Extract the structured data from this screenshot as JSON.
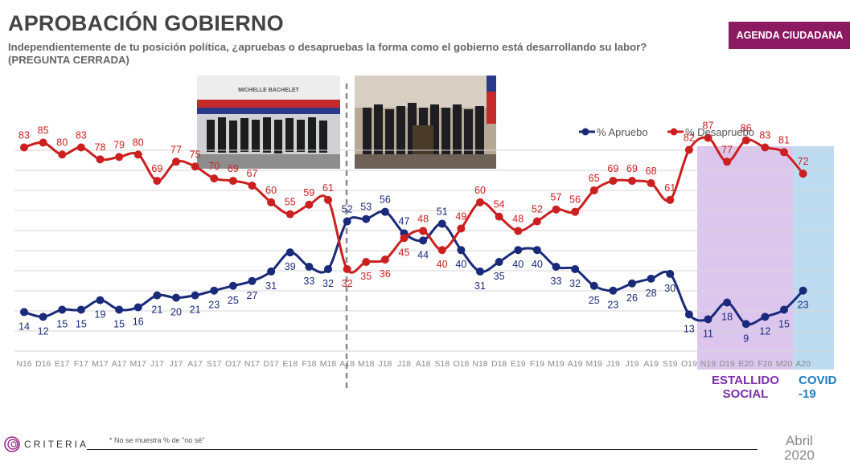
{
  "header": {
    "title": "APROBACIÓN GOBIERNO",
    "subtitle": "Independientemente de tu posición política, ¿apruebas o desapruebas la forma como el  gobierno está desarrollando su labor?",
    "subtitle2": "(PREGUNTA CERRADA)",
    "badge": "AGENDA CIUDADANA"
  },
  "photos": {
    "left_banner": "MICHELLE BACHELET"
  },
  "periods": {
    "estallido": "ESTALLIDO SOCIAL",
    "covid": "COVID -19"
  },
  "footer": {
    "brand": "CRITERIA",
    "note": "* No se muestra % de \"no sé\"",
    "date_month": "Abril",
    "date_year": "2020"
  },
  "colors": {
    "aprueba": "#1a2a7a",
    "desaprueba": "#cc1f1f",
    "estallido_band": "#dcc6ee",
    "covid_band": "#bddcf2",
    "badge": "#8c1a63"
  },
  "chart_data": {
    "type": "line",
    "categories": [
      "N16",
      "D16",
      "E17",
      "F17",
      "M17",
      "A17",
      "M17",
      "J17",
      "J17",
      "A17",
      "S17",
      "O17",
      "N17",
      "D17",
      "E18",
      "F18",
      "M18",
      "A18",
      "M18",
      "J18",
      "J18",
      "A18",
      "S18",
      "O18",
      "N18",
      "D18",
      "E19",
      "F19",
      "M19",
      "A19",
      "M19",
      "J19",
      "J19",
      "A19",
      "S19",
      "O19",
      "N19",
      "D19",
      "E20",
      "F20",
      "M20",
      "A20"
    ],
    "series": [
      {
        "name": "% Apruebo",
        "values": [
          14,
          12,
          15,
          15,
          19,
          15,
          16,
          21,
          20,
          21,
          23,
          25,
          27,
          31,
          39,
          33,
          32,
          52,
          53,
          56,
          47,
          44,
          51,
          40,
          31,
          35,
          40,
          40,
          33,
          32,
          25,
          23,
          26,
          28,
          30,
          13,
          11,
          18,
          9,
          12,
          15,
          23
        ]
      },
      {
        "name": "% Desapruebo",
        "values": [
          83,
          85,
          80,
          83,
          78,
          79,
          80,
          69,
          77,
          75,
          70,
          69,
          67,
          60,
          55,
          59,
          61,
          32,
          35,
          36,
          45,
          48,
          40,
          49,
          60,
          54,
          48,
          52,
          57,
          56,
          65,
          69,
          69,
          68,
          61,
          82,
          87,
          77,
          86,
          83,
          81,
          72
        ]
      }
    ],
    "legend_position": "top-right",
    "grid": true
  }
}
